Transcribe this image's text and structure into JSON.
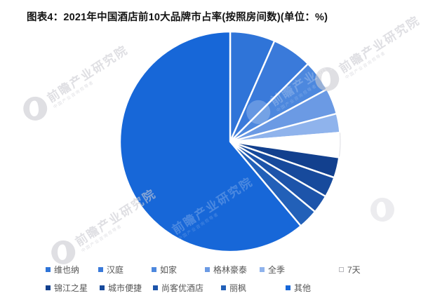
{
  "page": {
    "title": "图表4：2021年中国酒店前10大品牌市占率(按照房间数)(单位：%)"
  },
  "watermark": {
    "text": "前瞻产业研究院",
    "subtext": "中国产业咨询领导者"
  },
  "chart_data": {
    "type": "pie",
    "title": "2021年中国酒店前10大品牌市占率(按照房间数)",
    "unit": "%",
    "start_angle_deg": 90,
    "direction": "clockwise",
    "legend_position": "bottom",
    "gap_color": "#ffffff",
    "series": [
      {
        "name": "维也纳",
        "value": 6.6,
        "color": "#2F74D8"
      },
      {
        "name": "汉庭",
        "value": 5.9,
        "color": "#3A7ADA"
      },
      {
        "name": "如家",
        "value": 4.6,
        "color": "#4D88DE"
      },
      {
        "name": "格林豪泰",
        "value": 3.8,
        "color": "#6B9AE4"
      },
      {
        "name": "全季",
        "value": 2.8,
        "color": "#8FB3EC"
      },
      {
        "name": "7天",
        "value": 3.6,
        "color": "#FFFFFF"
      },
      {
        "name": "锦江之星",
        "value": 3.0,
        "color": "#12408E"
      },
      {
        "name": "城市便捷",
        "value": 3.0,
        "color": "#174A9C"
      },
      {
        "name": "尚客优酒店",
        "value": 2.7,
        "color": "#1D54AA"
      },
      {
        "name": "丽枫",
        "value": 2.9,
        "color": "#2260B8"
      },
      {
        "name": "其他",
        "value": 61.1,
        "color": "#1767D8"
      }
    ]
  }
}
